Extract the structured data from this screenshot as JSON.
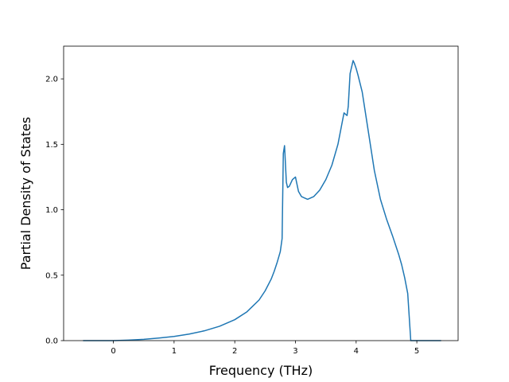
{
  "chart_data": {
    "type": "line",
    "title": "",
    "xlabel": "Frequency (THz)",
    "ylabel": "Partial Density of States",
    "xlim": [
      -0.82,
      5.68
    ],
    "ylim": [
      0.0,
      2.25
    ],
    "xticks": [
      0,
      1,
      2,
      3,
      4,
      5
    ],
    "yticks": [
      0.0,
      0.5,
      1.0,
      1.5,
      2.0
    ],
    "xtick_labels": [
      "0",
      "1",
      "2",
      "3",
      "4",
      "5"
    ],
    "ytick_labels": [
      "0.0",
      "0.5",
      "1.0",
      "1.5",
      "2.0"
    ],
    "grid": false,
    "legend": "none",
    "series": [
      {
        "color": "#1f77b4",
        "x": [
          -0.5,
          0.0,
          0.25,
          0.5,
          0.75,
          1.0,
          1.25,
          1.5,
          1.75,
          2.0,
          2.2,
          2.4,
          2.5,
          2.6,
          2.65,
          2.7,
          2.75,
          2.78,
          2.8,
          2.82,
          2.85,
          2.87,
          2.9,
          2.95,
          3.0,
          3.05,
          3.1,
          3.2,
          3.3,
          3.4,
          3.5,
          3.6,
          3.7,
          3.8,
          3.85,
          3.87,
          3.9,
          3.95,
          3.97,
          4.0,
          4.03,
          4.1,
          4.2,
          4.25,
          4.3,
          4.4,
          4.5,
          4.6,
          4.7,
          4.75,
          4.8,
          4.85,
          4.9,
          4.95,
          5.4
        ],
        "y": [
          0.0,
          0.0,
          0.004,
          0.01,
          0.02,
          0.032,
          0.05,
          0.075,
          0.11,
          0.16,
          0.22,
          0.31,
          0.38,
          0.47,
          0.53,
          0.6,
          0.68,
          0.78,
          1.43,
          1.49,
          1.21,
          1.17,
          1.18,
          1.23,
          1.25,
          1.14,
          1.1,
          1.08,
          1.1,
          1.15,
          1.23,
          1.34,
          1.5,
          1.74,
          1.72,
          1.79,
          2.04,
          2.14,
          2.12,
          2.08,
          2.03,
          1.9,
          1.6,
          1.45,
          1.3,
          1.08,
          0.93,
          0.8,
          0.66,
          0.58,
          0.48,
          0.36,
          0.0,
          0.0,
          0.0
        ]
      }
    ]
  }
}
